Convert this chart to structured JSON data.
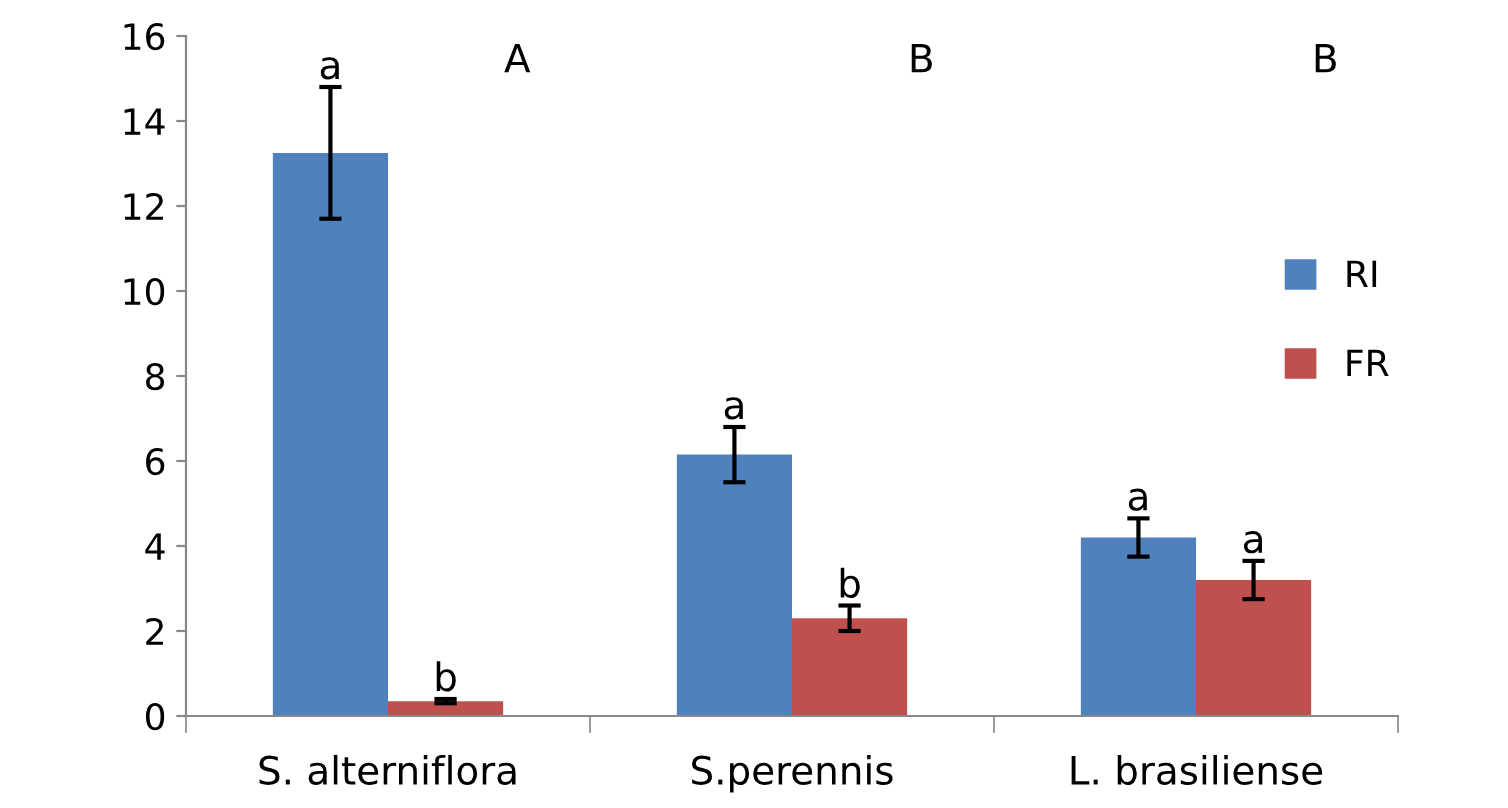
{
  "chart_data": {
    "type": "bar",
    "categories": [
      "S. alterniflora",
      "S.perennis",
      "L. brasiliense"
    ],
    "series": [
      {
        "name": "RI",
        "color": "#4f81bd",
        "values": [
          13.25,
          6.15,
          4.2
        ],
        "errors": [
          1.55,
          0.65,
          0.45
        ],
        "value_labels": [
          "a",
          "a",
          "a"
        ]
      },
      {
        "name": "FR",
        "color": "#c0504d",
        "values": [
          0.35,
          2.3,
          3.2
        ],
        "errors": [
          0.05,
          0.3,
          0.45
        ],
        "value_labels": [
          "b",
          "b",
          "a"
        ]
      }
    ],
    "annotations": [
      "A",
      "B",
      "B"
    ],
    "ylim": [
      0,
      16
    ],
    "yticks": [
      0,
      2,
      4,
      6,
      8,
      10,
      12,
      14,
      16
    ],
    "grid": false,
    "legend": "right"
  }
}
